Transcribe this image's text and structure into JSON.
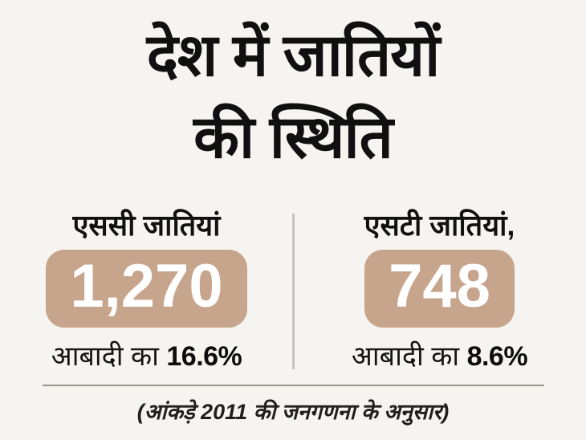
{
  "title": {
    "line1": "देश में जातियों",
    "line2": "की स्थिति"
  },
  "cards": [
    {
      "heading": "एससी जातियां",
      "count": "1,270",
      "population_label": "आबादी का",
      "percent": "16.6%"
    },
    {
      "heading": "एसटी जातियां,",
      "count": "748",
      "population_label": "आबादी का",
      "percent": "8.6%"
    }
  ],
  "footnote": "(आंकड़े 2011 की जनगणना के अनुसार)",
  "colors": {
    "background": "#f5f4f0",
    "count_box": "#c7a58d",
    "count_text": "#ffffff",
    "text": "#111111",
    "vertical_divider": "#c5c3bf",
    "horizontal_divider": "#96948f"
  }
}
